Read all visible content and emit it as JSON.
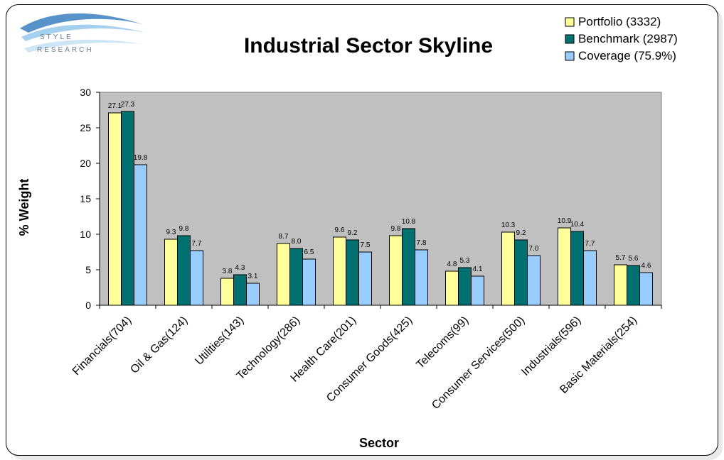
{
  "logo": {
    "line1": "STYLE",
    "line2": "RESEARCH"
  },
  "chart_data": {
    "type": "bar",
    "title": "Industrial Sector Skyline",
    "xlabel": "Sector",
    "ylabel": "% Weight",
    "ylim": [
      0,
      30
    ],
    "yticks": [
      0,
      5,
      10,
      15,
      20,
      25,
      30
    ],
    "grid": false,
    "legend_position": "top-right",
    "plot_background": "#c0c0c0",
    "categories": [
      "Financials(704)",
      "Oil & Gas(124)",
      "Utilities(143)",
      "Technology(286)",
      "Health Care(201)",
      "Consumer Goods(425)",
      "Telecoms(99)",
      "Consumer Services(500)",
      "Industrials(596)",
      "Basic Materials(254)"
    ],
    "series": [
      {
        "name": "Portfolio (3332)",
        "color": "#ffff99",
        "values": [
          27.1,
          9.3,
          3.8,
          8.7,
          9.6,
          9.8,
          4.8,
          10.3,
          10.9,
          5.7
        ],
        "labels": [
          "27.1",
          "9.3",
          "3.8",
          "8.7",
          "9.6",
          "9.8",
          "4.8",
          "10.3",
          "10.9",
          "5.7"
        ]
      },
      {
        "name": "Benchmark (2987)",
        "color": "#007070",
        "values": [
          27.3,
          9.8,
          4.3,
          8.0,
          9.2,
          10.8,
          5.3,
          9.2,
          10.4,
          5.6
        ],
        "labels": [
          "27.3",
          "9.8",
          "4.3",
          "8.0",
          "9.2",
          "10.8",
          "5.3",
          "9.2",
          "10.4",
          "5.6"
        ]
      },
      {
        "name": "Coverage (75.9%)",
        "color": "#99ccff",
        "values": [
          19.8,
          7.7,
          3.1,
          6.5,
          7.5,
          7.8,
          4.1,
          7.0,
          7.7,
          4.6
        ],
        "labels": [
          "19.8",
          "7.7",
          "3.1",
          "6.5",
          "7.5",
          "7.8",
          "4.1",
          "7.0",
          "7.7",
          "4.6"
        ]
      }
    ]
  }
}
